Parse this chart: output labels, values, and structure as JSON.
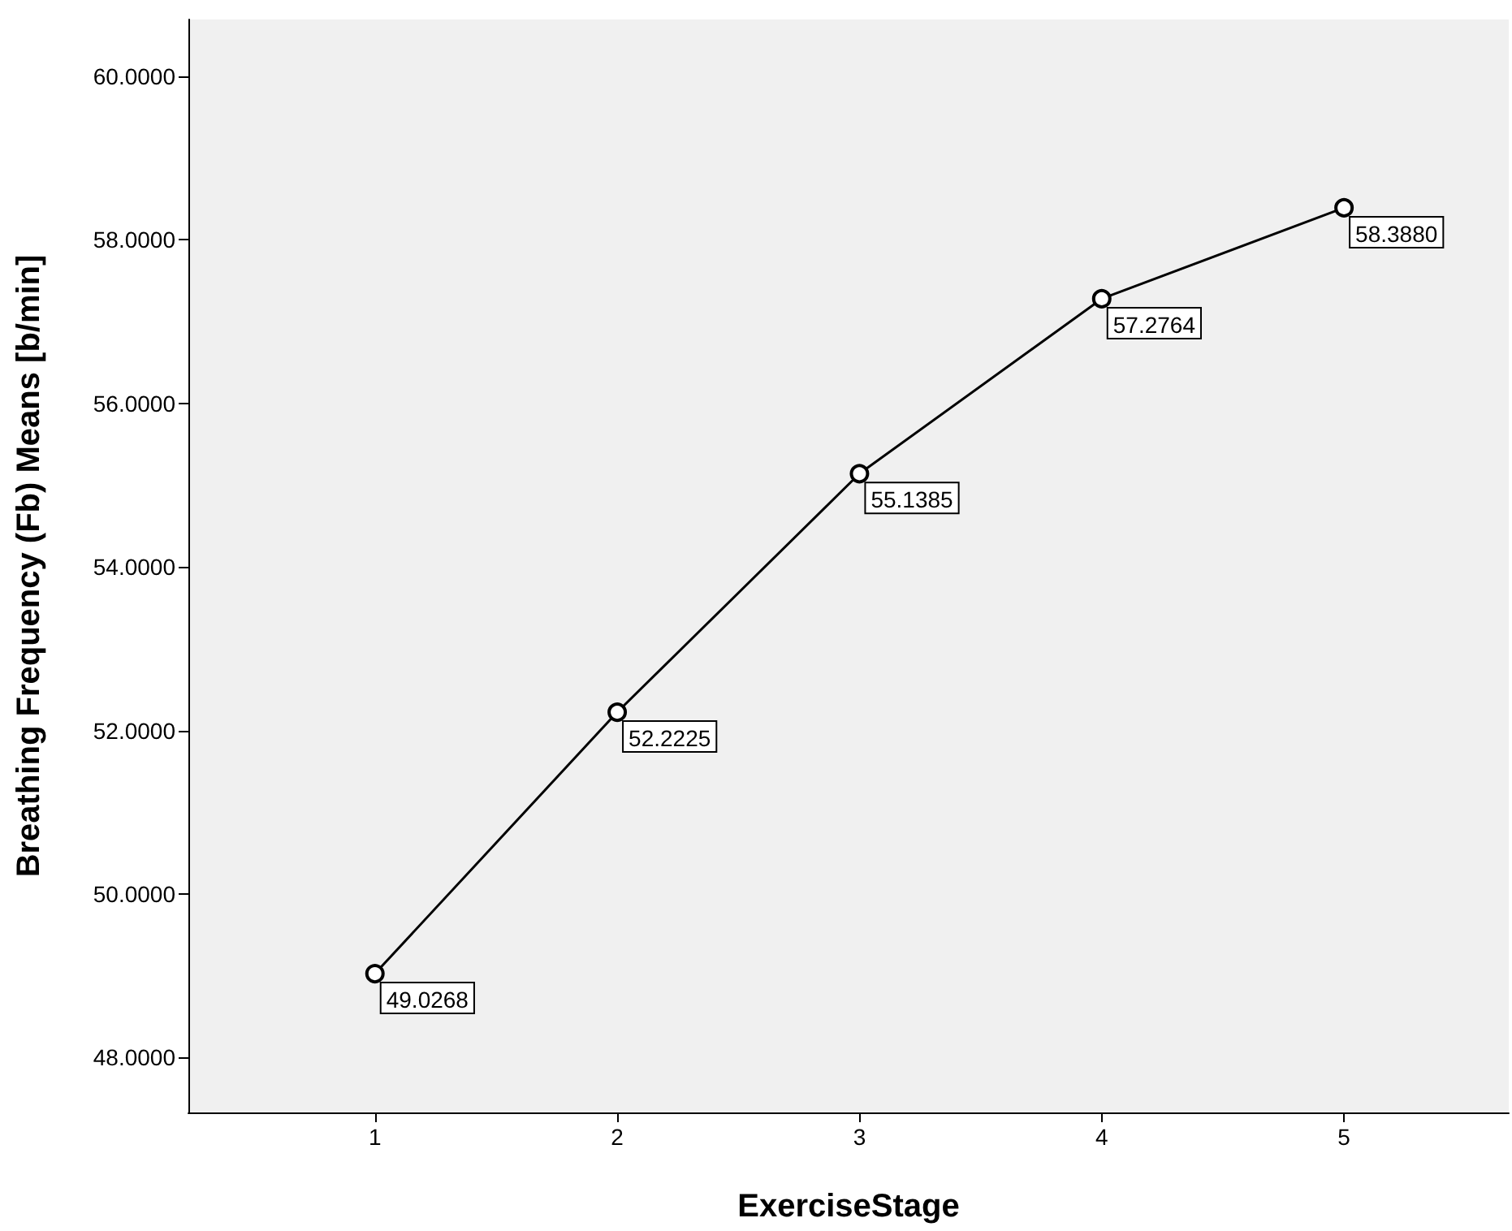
{
  "chart_data": {
    "type": "line",
    "xlabel": "ExerciseStage",
    "ylabel": "Breathing Frequency (Fb) Means [b/min]",
    "x": [
      1,
      2,
      3,
      4,
      5
    ],
    "series": [
      {
        "color": "#000000",
        "values": [
          49.0268,
          52.2225,
          55.1385,
          57.2764,
          58.388
        ],
        "value_labels": [
          "49.0268",
          "52.2225",
          "55.1385",
          "57.2764",
          "58.3880"
        ]
      }
    ],
    "xlim": [
      0.23,
      5.68
    ],
    "xticks": [
      1,
      2,
      3,
      4,
      5
    ],
    "ylim": [
      47.33,
      60.69
    ],
    "yticks": [
      {
        "value": 48,
        "label": "48.0000"
      },
      {
        "value": 50,
        "label": "50.0000"
      },
      {
        "value": 52,
        "label": "52.0000"
      },
      {
        "value": 54,
        "label": "54.0000"
      },
      {
        "value": 56,
        "label": "56.0000"
      },
      {
        "value": 58,
        "label": "58.0000"
      },
      {
        "value": 60,
        "label": "60.0000"
      }
    ],
    "grid": false,
    "marker": "circle",
    "line_style": "solid"
  }
}
